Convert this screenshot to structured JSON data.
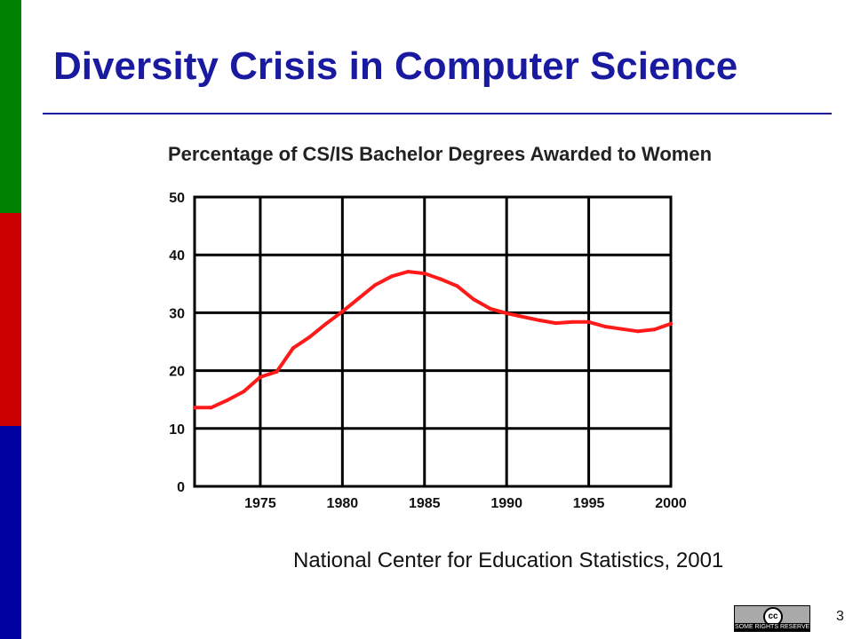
{
  "slide": {
    "title": "Diversity Crisis in Computer Science",
    "source": "National Center for Education Statistics, 2001",
    "page_number": "3",
    "sidebar_colors": [
      "#008000",
      "#cc0000",
      "#0000a0"
    ],
    "title_color": "#1a1aa0",
    "license_badge": {
      "icon": "cc-icon",
      "symbol": "cc",
      "text": "SOME RIGHTS RESERVED"
    }
  },
  "chart_data": {
    "type": "line",
    "title": "Percentage of CS/IS Bachelor Degrees Awarded to Women",
    "xlabel": "",
    "ylabel": "",
    "xlim": [
      1971,
      2000
    ],
    "ylim": [
      0,
      50
    ],
    "x_ticks": [
      1975,
      1980,
      1985,
      1990,
      1995,
      2000
    ],
    "y_ticks": [
      0,
      10,
      20,
      30,
      40,
      50
    ],
    "grid": true,
    "legend": "none",
    "series": [
      {
        "color": "#ff1a1a",
        "x": [
          1971,
          1972,
          1973,
          1974,
          1975,
          1976,
          1977,
          1978,
          1979,
          1980,
          1981,
          1982,
          1983,
          1984,
          1985,
          1986,
          1987,
          1988,
          1989,
          1990,
          1991,
          1992,
          1993,
          1994,
          1995,
          1996,
          1997,
          1998,
          1999,
          2000
        ],
        "y": [
          13.6,
          13.6,
          14.9,
          16.4,
          18.9,
          19.8,
          23.9,
          25.8,
          28.1,
          30.2,
          32.5,
          34.8,
          36.3,
          37.1,
          36.8,
          35.8,
          34.6,
          32.3,
          30.7,
          29.9,
          29.3,
          28.7,
          28.2,
          28.4,
          28.4,
          27.6,
          27.2,
          26.8,
          27.1,
          28.1
        ]
      }
    ]
  }
}
